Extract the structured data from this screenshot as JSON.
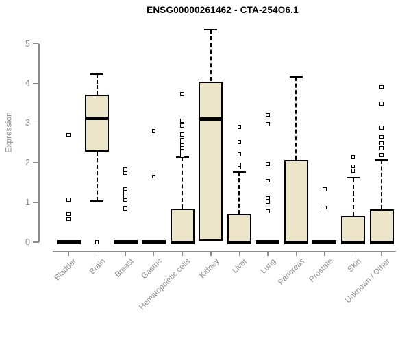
{
  "chart_data": {
    "type": "boxplot",
    "title": "ENSG00000261462 - CTA-254O6.1",
    "ylabel": "Expression",
    "xlabel": "",
    "ylim": [
      0,
      5
    ],
    "yticks": [
      0,
      1,
      2,
      3,
      4,
      5
    ],
    "grid": false,
    "legend": "none",
    "box_fill": "#ECE5C9",
    "box_border": "#000000",
    "axis_color": "#8C8C8C",
    "categories": [
      "Bladder",
      "Brain",
      "Breast",
      "Gastric",
      "Hematopoietic cells",
      "Kidney",
      "Liver",
      "Lung",
      "Pancreas",
      "Prostate",
      "Skin",
      "Unknown / Other"
    ],
    "series": [
      {
        "category": "Bladder",
        "q1": 0,
        "median": 0,
        "q3": 0,
        "whisker_low": 0,
        "whisker_high": 0,
        "outliers": [
          2.7,
          1.07,
          0.71,
          0.58
        ]
      },
      {
        "category": "Brain",
        "q1": 2.28,
        "median": 3.11,
        "q3": 3.72,
        "whisker_low": 1.03,
        "whisker_high": 4.23,
        "outliers": [
          0.0
        ]
      },
      {
        "category": "Breast",
        "q1": 0,
        "median": 0,
        "q3": 0,
        "whisker_low": 0,
        "whisker_high": 0,
        "outliers": [
          1.83,
          1.74,
          1.33,
          1.26,
          1.19,
          1.12,
          1.06,
          0.85
        ]
      },
      {
        "category": "Gastric",
        "q1": 0,
        "median": 0,
        "q3": 0,
        "whisker_low": 0,
        "whisker_high": 0,
        "outliers": [
          2.8,
          1.65
        ]
      },
      {
        "category": "Hematopoietic cells",
        "q1": 0,
        "median": 0,
        "q3": 0.85,
        "whisker_low": 0,
        "whisker_high": 2.14,
        "outliers": [
          3.73,
          3.06,
          2.94,
          2.71,
          2.58,
          2.51,
          2.44,
          2.37,
          2.3,
          2.24,
          2.18
        ]
      },
      {
        "category": "Kidney",
        "q1": 0.03,
        "median": 3.1,
        "q3": 4.05,
        "whisker_low": 0.03,
        "whisker_high": 5.36,
        "outliers": []
      },
      {
        "category": "Liver",
        "q1": 0,
        "median": 0,
        "q3": 0.71,
        "whisker_low": 0,
        "whisker_high": 1.77,
        "outliers": [
          2.9,
          2.52,
          2.21,
          1.95,
          1.87
        ]
      },
      {
        "category": "Lung",
        "q1": 0,
        "median": 0,
        "q3": 0,
        "whisker_low": 0,
        "whisker_high": 0,
        "outliers": [
          3.2,
          2.97,
          1.97,
          1.55,
          1.11,
          1.02,
          0.78
        ]
      },
      {
        "category": "Pancreas",
        "q1": 0,
        "median": 0,
        "q3": 2.07,
        "whisker_low": 0,
        "whisker_high": 4.17,
        "outliers": []
      },
      {
        "category": "Prostate",
        "q1": 0,
        "median": 0,
        "q3": 0,
        "whisker_low": 0,
        "whisker_high": 0,
        "outliers": [
          1.33,
          0.87
        ]
      },
      {
        "category": "Skin",
        "q1": 0,
        "median": 0,
        "q3": 0.66,
        "whisker_low": 0,
        "whisker_high": 1.63,
        "outliers": [
          2.14,
          1.91,
          1.8
        ]
      },
      {
        "category": "Unknown / Other",
        "q1": 0,
        "median": 0,
        "q3": 0.83,
        "whisker_low": 0,
        "whisker_high": 2.07,
        "outliers": [
          3.9,
          3.49,
          2.88,
          2.65,
          2.49,
          2.37,
          2.19
        ]
      }
    ]
  }
}
